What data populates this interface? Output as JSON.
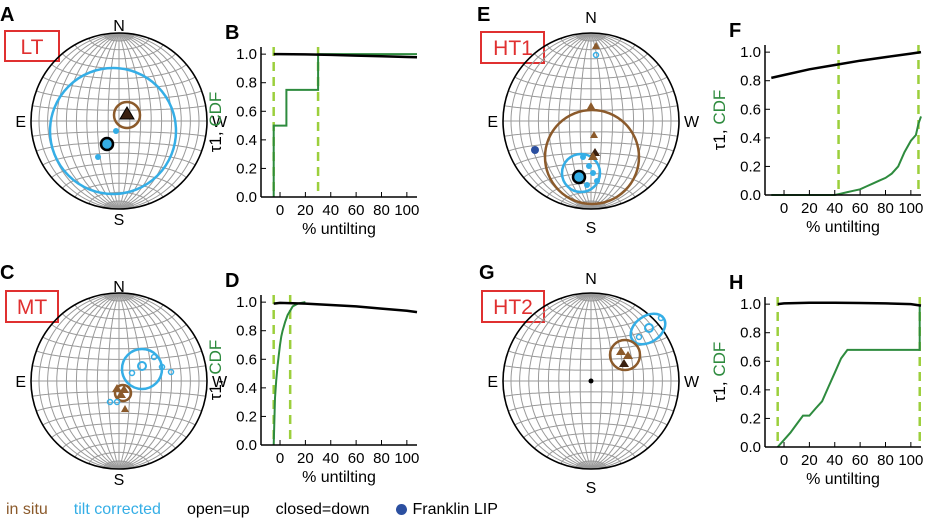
{
  "colors": {
    "in_situ": "#8b5a2b",
    "tilt_corrected": "#35aee6",
    "cdf": "#2e8b3e",
    "bounds": "#9ccf3c",
    "tau": "#000000",
    "label_box": "#e03030",
    "grid": "#9a9a9a",
    "lip": "#2b4fa0"
  },
  "stereonets": [
    {
      "panel": "A",
      "label": "LT",
      "N": "N",
      "S": "S",
      "E": "E",
      "W": "W"
    },
    {
      "panel": "C",
      "label": "MT",
      "N": "N",
      "S": "S",
      "E": "E",
      "W": "W"
    },
    {
      "panel": "E",
      "label": "HT1",
      "N": "N",
      "S": "S",
      "E": "E",
      "W": "W"
    },
    {
      "panel": "G",
      "label": "HT2",
      "N": "N",
      "S": "S",
      "E": "E",
      "W": "W"
    }
  ],
  "chart_data": [
    {
      "panel": "B",
      "type": "line",
      "xlabel": "% untilting",
      "ylabel_tau": "τ1,",
      "ylabel_cdf": "CDF",
      "xticks": [
        0,
        20,
        40,
        60,
        80,
        100
      ],
      "yticks": [
        "0.0",
        "0.2",
        "0.4",
        "0.6",
        "0.8",
        "1.0"
      ],
      "xlim": [
        -15,
        108
      ],
      "ylim": [
        0,
        1.05
      ],
      "tau": {
        "x": [
          -5,
          0,
          20,
          40,
          60,
          80,
          100,
          108
        ],
        "y": [
          1.0,
          1.0,
          0.998,
          0.995,
          0.99,
          0.985,
          0.98,
          0.978
        ]
      },
      "cdf": {
        "x": [
          -5,
          -5,
          -5,
          5,
          5,
          30,
          30,
          108
        ],
        "y": [
          0,
          0.5,
          0.5,
          0.5,
          0.75,
          0.75,
          1.0,
          1.0
        ]
      },
      "bounds": [
        -5,
        30
      ]
    },
    {
      "panel": "D",
      "type": "line",
      "xlabel": "% untilting",
      "ylabel_tau": "τ1,",
      "ylabel_cdf": "CDF",
      "xticks": [
        0,
        20,
        40,
        60,
        80,
        100
      ],
      "yticks": [
        "0.0",
        "0.2",
        "0.4",
        "0.6",
        "0.8",
        "1.0"
      ],
      "xlim": [
        -15,
        108
      ],
      "ylim": [
        0,
        1.05
      ],
      "tau": {
        "x": [
          -5,
          0,
          20,
          40,
          60,
          80,
          100,
          108
        ],
        "y": [
          0.99,
          0.995,
          0.99,
          0.98,
          0.97,
          0.955,
          0.94,
          0.93
        ]
      },
      "cdf": {
        "x": [
          -5,
          -4,
          -3,
          -2,
          -1,
          0,
          1,
          2,
          4,
          6,
          8,
          10,
          14,
          20
        ],
        "y": [
          0,
          0.33,
          0.45,
          0.55,
          0.63,
          0.7,
          0.76,
          0.8,
          0.86,
          0.91,
          0.94,
          0.97,
          0.99,
          1.0
        ]
      },
      "bounds": [
        -5,
        8
      ]
    },
    {
      "panel": "F",
      "type": "line",
      "xlabel": "% untilting",
      "ylabel_tau": "τ1,",
      "ylabel_cdf": "CDF",
      "xticks": [
        0,
        20,
        40,
        60,
        80,
        100
      ],
      "yticks": [
        "0.0",
        "0.2",
        "0.4",
        "0.6",
        "0.8",
        "1.0"
      ],
      "xlim": [
        -15,
        108
      ],
      "ylim": [
        0,
        1.05
      ],
      "tau": {
        "x": [
          -10,
          0,
          20,
          40,
          60,
          80,
          100,
          108
        ],
        "y": [
          0.82,
          0.84,
          0.88,
          0.91,
          0.94,
          0.965,
          0.99,
          1.0
        ]
      },
      "cdf": {
        "x": [
          -10,
          40,
          45,
          50,
          55,
          60,
          65,
          70,
          75,
          80,
          85,
          90,
          95,
          100,
          104,
          106,
          108
        ],
        "y": [
          0,
          0,
          0.01,
          0.02,
          0.03,
          0.04,
          0.06,
          0.08,
          0.1,
          0.12,
          0.15,
          0.2,
          0.3,
          0.38,
          0.42,
          0.5,
          0.55
        ]
      },
      "bounds": [
        43,
        106
      ]
    },
    {
      "panel": "H",
      "type": "line",
      "xlabel": "% untilting",
      "ylabel_tau": "τ1,",
      "ylabel_cdf": "CDF",
      "xticks": [
        0,
        20,
        40,
        60,
        80,
        100
      ],
      "yticks": [
        "0.0",
        "0.2",
        "0.4",
        "0.6",
        "0.8",
        "1.0"
      ],
      "xlim": [
        -15,
        108
      ],
      "ylim": [
        0,
        1.05
      ],
      "tau": {
        "x": [
          -5,
          0,
          20,
          40,
          60,
          80,
          100,
          108
        ],
        "y": [
          1.0,
          1.005,
          1.01,
          1.01,
          1.008,
          1.005,
          1.0,
          0.99
        ]
      },
      "cdf": {
        "x": [
          -5,
          0,
          5,
          10,
          15,
          20,
          25,
          30,
          35,
          40,
          45,
          50,
          55,
          107,
          107
        ],
        "y": [
          0,
          0.05,
          0.1,
          0.16,
          0.22,
          0.22,
          0.27,
          0.32,
          0.42,
          0.52,
          0.62,
          0.68,
          0.68,
          0.68,
          1.0
        ]
      },
      "bounds": [
        -5,
        107
      ]
    }
  ],
  "legend": {
    "in_situ": "in situ",
    "tilt_corrected": "tilt corrected",
    "open": "open=up",
    "closed": "closed=down",
    "lip": "Franklin LIP"
  }
}
